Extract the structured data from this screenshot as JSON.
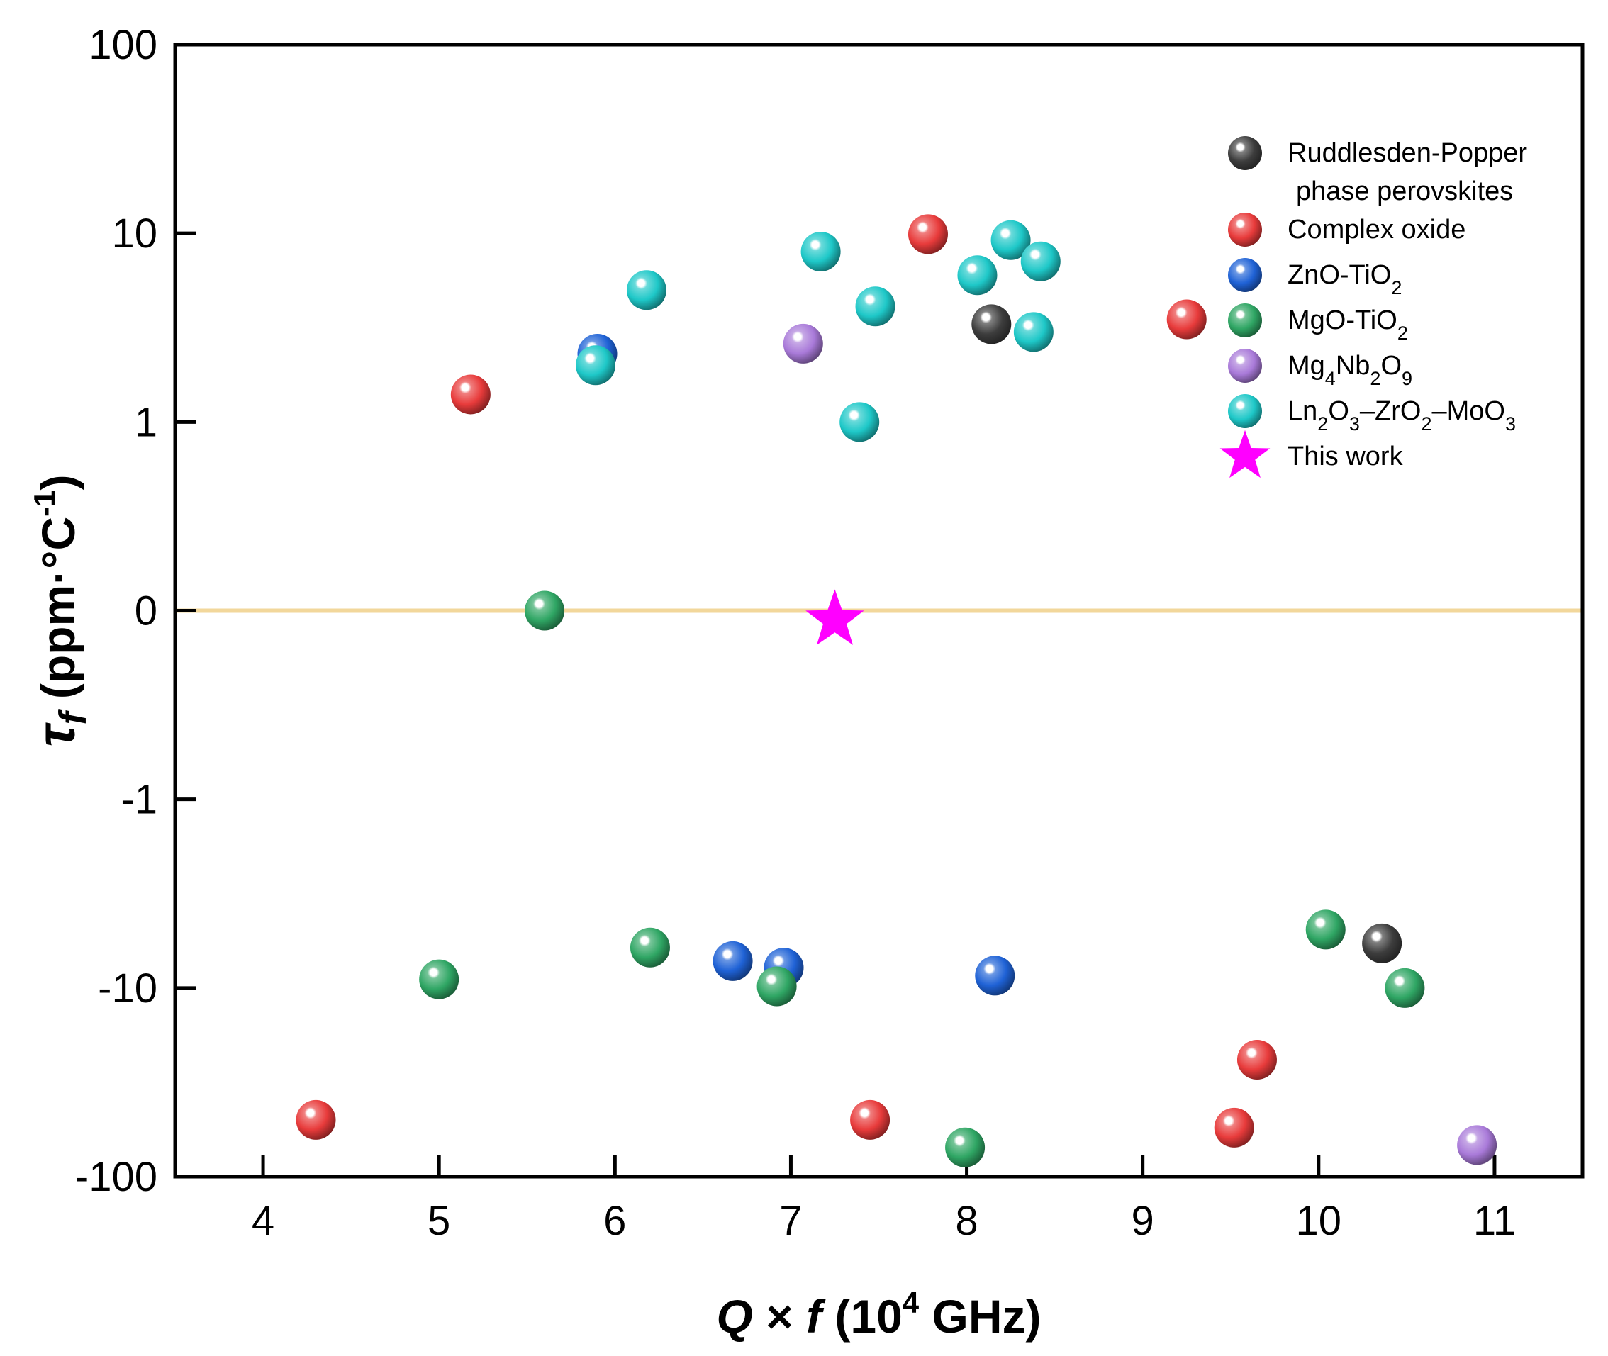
{
  "chart_data": {
    "type": "scatter",
    "xlabel": {
      "q": "Q",
      "times": " × ",
      "f": "f",
      "open": " (10",
      "exp": "4",
      "close": " GHz)"
    },
    "ylabel": {
      "tau": "τ",
      "sub": "f",
      "unit": " (ppm·°C",
      "exp": "-1",
      "close": ")"
    },
    "xlim": [
      3.5,
      11.5
    ],
    "x_ticks": [
      4,
      5,
      6,
      7,
      8,
      9,
      10,
      11
    ],
    "y_scale": "symlog",
    "ylim": [
      -100,
      100
    ],
    "y_ticks": [
      {
        "value": 100,
        "label": "100"
      },
      {
        "value": 10,
        "label": "10"
      },
      {
        "value": 1,
        "label": "1"
      },
      {
        "value": 0,
        "label": "0"
      },
      {
        "value": -1,
        "label": "-1"
      },
      {
        "value": -10,
        "label": "-10"
      },
      {
        "value": -100,
        "label": "-100"
      }
    ],
    "reference_line": {
      "y": 0,
      "color": "#f2d79b"
    },
    "legend_placement": "top-right",
    "series": [
      {
        "id": "rp",
        "name": [
          "Ruddlesden-Popper",
          "phase perovskites"
        ],
        "color": "#3d3d3d",
        "marker": "sphere",
        "points": [
          [
            8.14,
            3.3
          ],
          [
            10.36,
            -5.8
          ]
        ]
      },
      {
        "id": "co",
        "name": [
          "Complex oxide"
        ],
        "color": "#e83b3b",
        "marker": "sphere",
        "points": [
          [
            4.3,
            -50
          ],
          [
            5.18,
            1.4
          ],
          [
            7.45,
            -50
          ],
          [
            7.78,
            9.9
          ],
          [
            9.25,
            3.5
          ],
          [
            9.52,
            -55
          ],
          [
            9.65,
            -24
          ]
        ]
      },
      {
        "id": "zt",
        "name": [
          {
            "t": "ZnO-TiO"
          },
          {
            "t": "2",
            "sub": true
          }
        ],
        "color": "#1f62d6",
        "marker": "sphere",
        "points": [
          [
            5.9,
            2.3
          ],
          [
            6.67,
            -7.2
          ],
          [
            6.96,
            -7.8
          ],
          [
            8.16,
            -8.6
          ]
        ]
      },
      {
        "id": "mt",
        "name": [
          {
            "t": "MgO-TiO"
          },
          {
            "t": "2",
            "sub": true
          }
        ],
        "color": "#2fa664",
        "marker": "sphere",
        "points": [
          [
            5.0,
            -9.0
          ],
          [
            5.6,
            0.0
          ],
          [
            6.2,
            -6.1
          ],
          [
            6.92,
            -9.8
          ],
          [
            7.99,
            -70
          ],
          [
            10.04,
            -4.9
          ],
          [
            10.49,
            -10
          ]
        ]
      },
      {
        "id": "mn",
        "name": [
          {
            "t": "Mg"
          },
          {
            "t": "4",
            "sub": true
          },
          {
            "t": "Nb"
          },
          {
            "t": "2",
            "sub": true
          },
          {
            "t": "O"
          },
          {
            "t": "9",
            "sub": true
          }
        ],
        "color": "#a97ad9",
        "marker": "sphere",
        "points": [
          [
            7.07,
            2.6
          ],
          [
            10.9,
            -68
          ]
        ]
      },
      {
        "id": "lzm",
        "name": [
          {
            "t": "Ln"
          },
          {
            "t": "2",
            "sub": true
          },
          {
            "t": "O"
          },
          {
            "t": "3",
            "sub": true
          },
          {
            "t": "–ZrO"
          },
          {
            "t": "2",
            "sub": true
          },
          {
            "t": "–MoO"
          },
          {
            "t": "3",
            "sub": true
          }
        ],
        "color": "#1ec8c8",
        "marker": "sphere",
        "points": [
          [
            5.89,
            2.0
          ],
          [
            6.18,
            5.0
          ],
          [
            7.17,
            8.0
          ],
          [
            7.39,
            1.0
          ],
          [
            7.48,
            4.1
          ],
          [
            8.06,
            6.0
          ],
          [
            8.25,
            9.2
          ],
          [
            8.38,
            3.0
          ],
          [
            8.42,
            7.1
          ]
        ]
      },
      {
        "id": "tw",
        "name": [
          "This work"
        ],
        "color": "#ff00ff",
        "marker": "star",
        "points": [
          [
            7.25,
            -0.05
          ]
        ]
      }
    ]
  }
}
